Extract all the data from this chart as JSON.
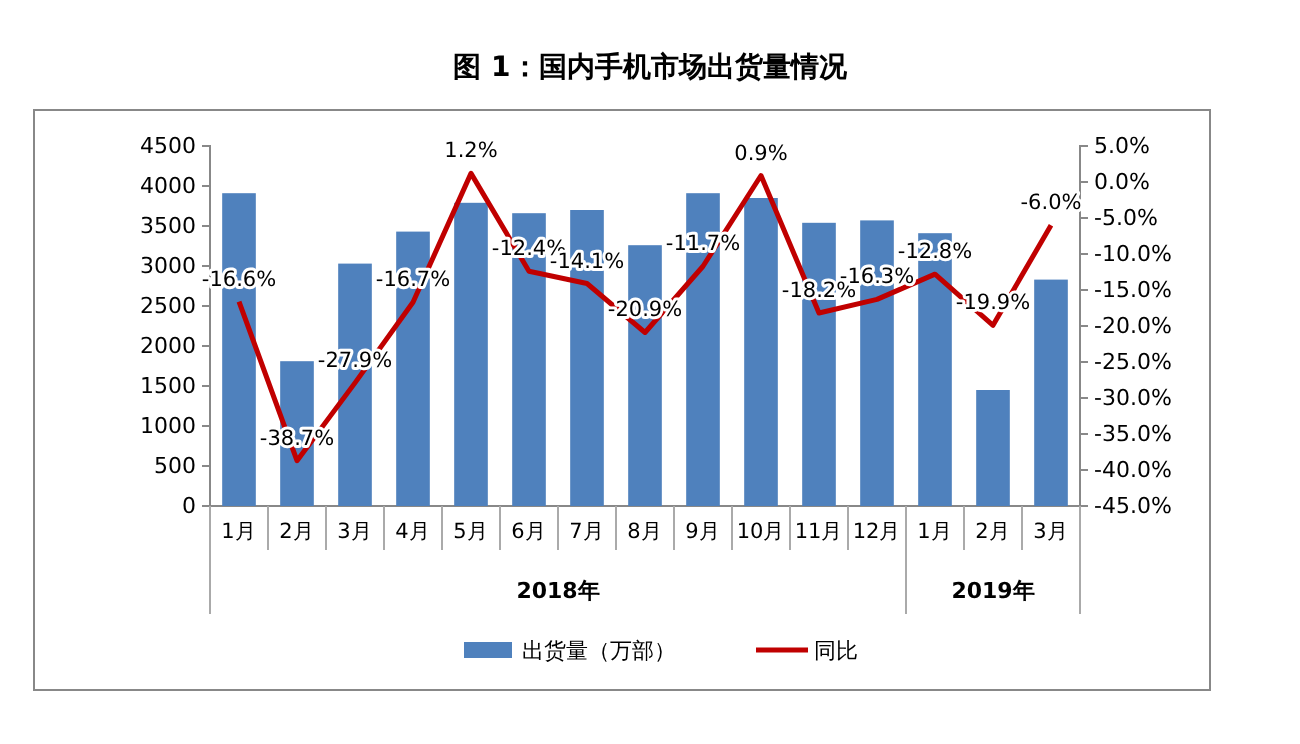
{
  "chart_data": {
    "type": "bar",
    "title": "图 1：国内手机市场出货量情况",
    "categories": [
      "1月",
      "2月",
      "3月",
      "4月",
      "5月",
      "6月",
      "7月",
      "8月",
      "9月",
      "10月",
      "11月",
      "12月",
      "1月",
      "2月",
      "3月"
    ],
    "series": [
      {
        "name": "出货量（万部）",
        "color": "#4f81bd",
        "values": [
          3910,
          1810,
          3030,
          3430,
          3790,
          3660,
          3700,
          3260,
          3910,
          3850,
          3540,
          3570,
          3410,
          1450,
          2830
        ]
      },
      {
        "name": "同比",
        "type": "line",
        "axis": "y2",
        "color": "#c00000",
        "values": [
          -16.6,
          -38.7,
          -27.9,
          -16.7,
          1.2,
          -12.4,
          -14.1,
          -20.9,
          -11.7,
          0.9,
          -18.2,
          -16.3,
          -12.8,
          -19.9,
          -6.0
        ],
        "value_labels": [
          "-16.6%",
          "-38.7%",
          "-27.9%",
          "-16.7%",
          "1.2%",
          "-12.4%",
          "-14.1%",
          "-20.9%",
          "-11.7%",
          "0.9%",
          "-18.2%",
          "-16.3%",
          "-12.8%",
          "-19.9%",
          "-6.0%"
        ]
      }
    ],
    "ylim": [
      0,
      4500
    ],
    "yticks": [
      0,
      500,
      1000,
      1500,
      2000,
      2500,
      3000,
      3500,
      4000,
      4500
    ],
    "y2lim": [
      -45,
      5
    ],
    "y2ticks": [
      {
        "value": -45,
        "label": "-45.0%"
      },
      {
        "value": -40,
        "label": "-40.0%"
      },
      {
        "value": -35,
        "label": "-35.0%"
      },
      {
        "value": -30,
        "label": "-30.0%"
      },
      {
        "value": -25,
        "label": "-25.0%"
      },
      {
        "value": -20,
        "label": "-20.0%"
      },
      {
        "value": -15,
        "label": "-15.0%"
      },
      {
        "value": -10,
        "label": "-10.0%"
      },
      {
        "value": -5,
        "label": "-5.0%"
      },
      {
        "value": 0,
        "label": "0.0%"
      },
      {
        "value": 5,
        "label": "5.0%"
      }
    ],
    "annotations": [
      "2018年",
      "2019年"
    ],
    "legend": "bottom",
    "grid": false,
    "marker": "none"
  }
}
